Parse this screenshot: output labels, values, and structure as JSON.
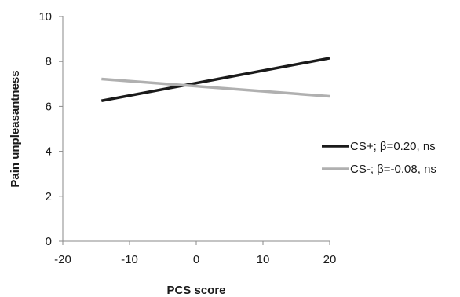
{
  "chart_data": {
    "type": "line",
    "xlabel": "PCS score",
    "ylabel": "Pain unpleasantness",
    "xlim": [
      -20,
      20
    ],
    "ylim": [
      0,
      10
    ],
    "x_ticks": [
      -20,
      -10,
      0,
      10,
      20
    ],
    "y_ticks": [
      0,
      2,
      4,
      6,
      8,
      10
    ],
    "grid": false,
    "legend_position": "right",
    "series": [
      {
        "name": "CS+; β=0.20, ns",
        "color": "#1a1a1a",
        "x": [
          -14.2,
          20
        ],
        "y": [
          6.25,
          8.15
        ]
      },
      {
        "name": "CS-; β=-0.08, ns",
        "color": "#b0b0b0",
        "x": [
          -14.2,
          20
        ],
        "y": [
          7.22,
          6.45
        ]
      }
    ]
  }
}
